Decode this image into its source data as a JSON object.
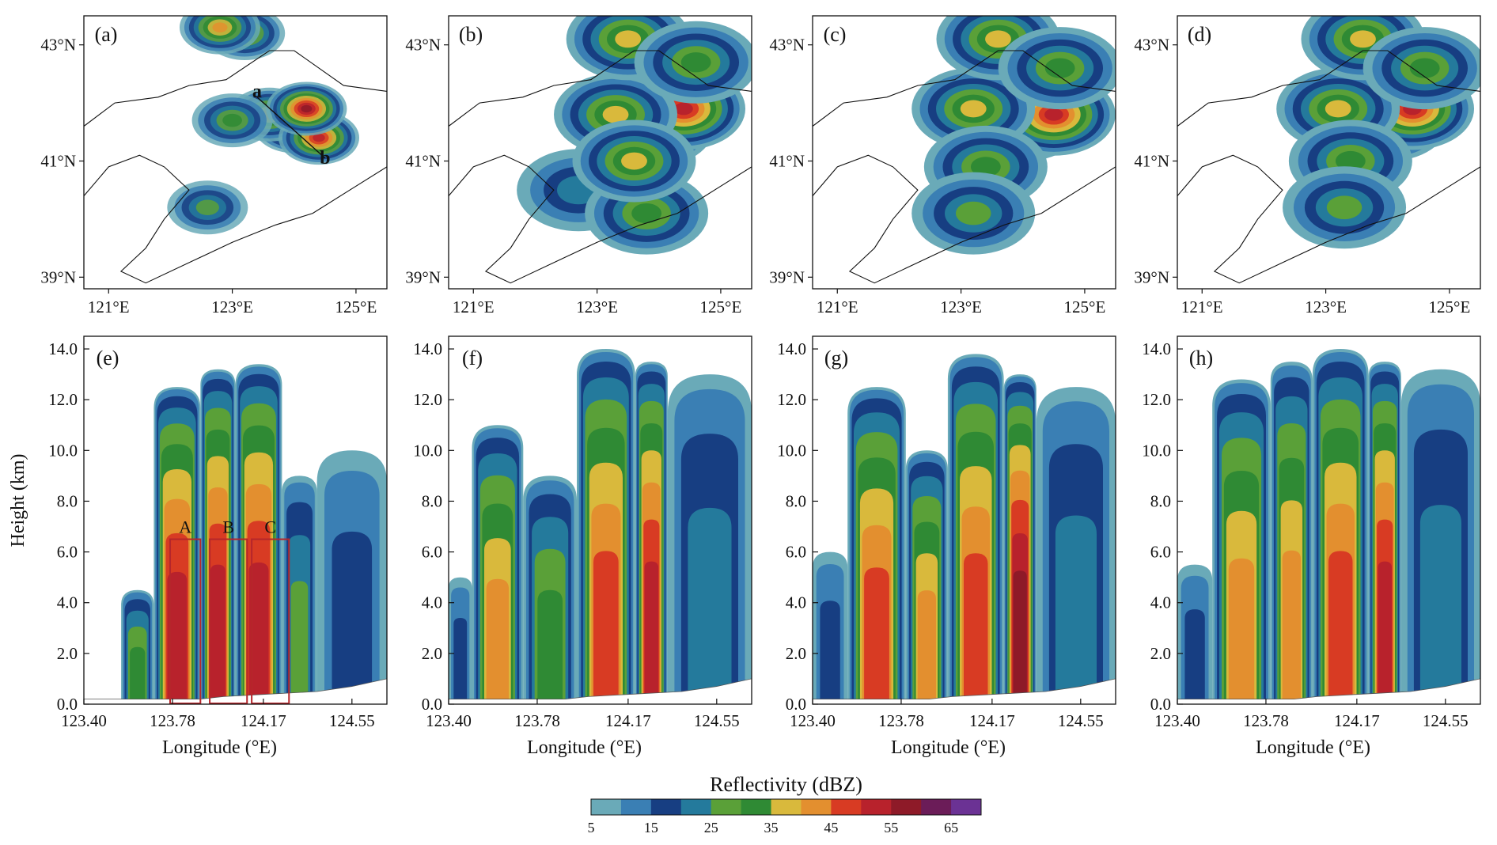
{
  "figure": {
    "colorbar": {
      "title": "Reflectivity (dBZ)",
      "tick_labels": [
        "5",
        "15",
        "25",
        "35",
        "45",
        "55",
        "65"
      ],
      "bins": [
        5,
        10,
        15,
        20,
        25,
        30,
        35,
        40,
        45,
        50,
        55,
        60,
        65,
        70
      ],
      "colors": [
        "#6aaab8",
        "#3a7fb4",
        "#173e82",
        "#247a9c",
        "#5aa038",
        "#2f8a34",
        "#d9b93c",
        "#e38f2f",
        "#d83b23",
        "#b8222c",
        "#8e1a28",
        "#6b1c58",
        "#6b3294"
      ]
    }
  },
  "chart_data": [
    {
      "type": "heatmap",
      "panel": "(a)",
      "x_ticks": [
        "121°E",
        "123°E",
        "125°E"
      ],
      "x_values": [
        121,
        123,
        125
      ],
      "y_ticks": [
        "43°N",
        "41°N",
        "39°N"
      ],
      "y_values": [
        43,
        41,
        39
      ],
      "xlim": [
        120.6,
        125.5
      ],
      "ylim": [
        38.8,
        43.5
      ],
      "annotations": [
        {
          "text": "a",
          "lon": 123.4,
          "lat": 42.1
        },
        {
          "text": "b",
          "lon": 124.5,
          "lat": 40.95
        }
      ],
      "cross_section": {
        "start": [
          123.4,
          42.1
        ],
        "end": [
          124.5,
          41.05
        ]
      },
      "cells": [
        {
          "lon": 124.0,
          "lat": 41.6,
          "dbz": 45
        },
        {
          "lon": 123.6,
          "lat": 41.8,
          "dbz": 40
        },
        {
          "lon": 124.4,
          "lat": 41.4,
          "dbz": 50
        },
        {
          "lon": 123.2,
          "lat": 43.2,
          "dbz": 35
        },
        {
          "lon": 122.8,
          "lat": 43.3,
          "dbz": 40
        },
        {
          "lon": 124.2,
          "lat": 41.9,
          "dbz": 55
        },
        {
          "lon": 123.0,
          "lat": 41.7,
          "dbz": 30
        },
        {
          "lon": 122.6,
          "lat": 40.2,
          "dbz": 25
        }
      ]
    },
    {
      "type": "heatmap",
      "panel": "(b)",
      "x_ticks": [
        "121°E",
        "123°E",
        "125°E"
      ],
      "x_values": [
        121,
        123,
        125
      ],
      "y_ticks": [
        "43°N",
        "41°N",
        "39°N"
      ],
      "y_values": [
        43,
        41,
        39
      ],
      "xlim": [
        120.6,
        125.5
      ],
      "ylim": [
        38.8,
        43.5
      ],
      "cells": [
        {
          "lon": 123.9,
          "lat": 41.6,
          "dbz": 45
        },
        {
          "lon": 124.4,
          "lat": 41.9,
          "dbz": 50
        },
        {
          "lon": 123.3,
          "lat": 41.8,
          "dbz": 35
        },
        {
          "lon": 123.5,
          "lat": 43.1,
          "dbz": 35
        },
        {
          "lon": 122.7,
          "lat": 40.5,
          "dbz": 20
        },
        {
          "lon": 123.8,
          "lat": 40.1,
          "dbz": 30
        },
        {
          "lon": 123.6,
          "lat": 41.0,
          "dbz": 35
        },
        {
          "lon": 124.6,
          "lat": 42.7,
          "dbz": 30
        }
      ]
    },
    {
      "type": "heatmap",
      "panel": "(c)",
      "x_ticks": [
        "121°E",
        "123°E",
        "125°E"
      ],
      "x_values": [
        121,
        123,
        125
      ],
      "y_ticks": [
        "43°N",
        "41°N",
        "39°N"
      ],
      "y_values": [
        43,
        41,
        39
      ],
      "xlim": [
        120.6,
        125.5
      ],
      "ylim": [
        38.8,
        43.5
      ],
      "cells": [
        {
          "lon": 124.0,
          "lat": 41.7,
          "dbz": 45
        },
        {
          "lon": 124.5,
          "lat": 41.8,
          "dbz": 50
        },
        {
          "lon": 123.2,
          "lat": 41.9,
          "dbz": 35
        },
        {
          "lon": 123.6,
          "lat": 43.1,
          "dbz": 35
        },
        {
          "lon": 123.4,
          "lat": 40.9,
          "dbz": 30
        },
        {
          "lon": 123.2,
          "lat": 40.1,
          "dbz": 25
        },
        {
          "lon": 124.6,
          "lat": 42.6,
          "dbz": 30
        }
      ]
    },
    {
      "type": "heatmap",
      "panel": "(d)",
      "x_ticks": [
        "121°E",
        "123°E",
        "125°E"
      ],
      "x_values": [
        121,
        123,
        125
      ],
      "y_ticks": [
        "43°N",
        "41°N",
        "39°N"
      ],
      "y_values": [
        43,
        41,
        39
      ],
      "xlim": [
        120.6,
        125.5
      ],
      "ylim": [
        38.8,
        43.5
      ],
      "cells": [
        {
          "lon": 124.0,
          "lat": 41.7,
          "dbz": 45
        },
        {
          "lon": 124.4,
          "lat": 41.9,
          "dbz": 50
        },
        {
          "lon": 123.2,
          "lat": 41.9,
          "dbz": 35
        },
        {
          "lon": 123.6,
          "lat": 43.1,
          "dbz": 35
        },
        {
          "lon": 123.4,
          "lat": 41.0,
          "dbz": 30
        },
        {
          "lon": 123.3,
          "lat": 40.2,
          "dbz": 25
        },
        {
          "lon": 124.6,
          "lat": 42.6,
          "dbz": 30
        }
      ]
    },
    {
      "type": "heatmap",
      "panel": "(e)",
      "xlabel": "Longitude (°E)",
      "ylabel": "Height (km)",
      "x_ticks": [
        "123.40",
        "123.78",
        "124.17",
        "124.55"
      ],
      "x_values": [
        123.4,
        123.78,
        124.17,
        124.55
      ],
      "y_ticks": [
        "0.0",
        "2.0",
        "4.0",
        "6.0",
        "8.0",
        "10.0",
        "12.0",
        "14.0"
      ],
      "y_values": [
        0,
        2,
        4,
        6,
        8,
        10,
        12,
        14
      ],
      "xlim": [
        123.4,
        124.7
      ],
      "ylim": [
        0,
        14.5
      ],
      "boxes": [
        {
          "label": "A",
          "x0": 123.77,
          "x1": 123.9,
          "y0": 0,
          "y1": 6.5
        },
        {
          "label": "B",
          "x0": 123.94,
          "x1": 124.1,
          "y0": 0,
          "y1": 6.5
        },
        {
          "label": "C",
          "x0": 124.12,
          "x1": 124.28,
          "y0": 0,
          "y1": 6.5
        }
      ],
      "columns": [
        {
          "x0": 123.56,
          "x1": 123.7,
          "top": 4.5,
          "core": 30
        },
        {
          "x0": 123.7,
          "x1": 123.9,
          "top": 12.5,
          "core": 50
        },
        {
          "x0": 123.9,
          "x1": 124.05,
          "top": 13.2,
          "core": 50
        },
        {
          "x0": 124.05,
          "x1": 124.25,
          "top": 13.4,
          "core": 50
        },
        {
          "x0": 124.25,
          "x1": 124.4,
          "top": 9.0,
          "core": 25
        },
        {
          "x0": 124.4,
          "x1": 124.7,
          "top": 10.0,
          "core": 15
        }
      ]
    },
    {
      "type": "heatmap",
      "panel": "(f)",
      "xlabel": "Longitude (°E)",
      "x_ticks": [
        "123.40",
        "123.78",
        "124.17",
        "124.55"
      ],
      "x_values": [
        123.4,
        123.78,
        124.17,
        124.55
      ],
      "y_ticks": [
        "0.0",
        "2.0",
        "4.0",
        "6.0",
        "8.0",
        "10.0",
        "12.0",
        "14.0"
      ],
      "y_values": [
        0,
        2,
        4,
        6,
        8,
        10,
        12,
        14
      ],
      "xlim": [
        123.4,
        124.7
      ],
      "ylim": [
        0,
        14.5
      ],
      "columns": [
        {
          "x0": 123.4,
          "x1": 123.5,
          "top": 5.0,
          "core": 15
        },
        {
          "x0": 123.5,
          "x1": 123.72,
          "top": 11.0,
          "core": 40
        },
        {
          "x0": 123.72,
          "x1": 123.95,
          "top": 9.0,
          "core": 30
        },
        {
          "x0": 123.95,
          "x1": 124.2,
          "top": 14.0,
          "core": 45
        },
        {
          "x0": 124.2,
          "x1": 124.34,
          "top": 13.5,
          "core": 50
        },
        {
          "x0": 124.34,
          "x1": 124.7,
          "top": 13.0,
          "core": 20
        }
      ]
    },
    {
      "type": "heatmap",
      "panel": "(g)",
      "xlabel": "Longitude (°E)",
      "x_ticks": [
        "123.40",
        "123.78",
        "124.17",
        "124.55"
      ],
      "x_values": [
        123.4,
        123.78,
        124.17,
        124.55
      ],
      "y_ticks": [
        "0.0",
        "2.0",
        "4.0",
        "6.0",
        "8.0",
        "10.0",
        "12.0",
        "14.0"
      ],
      "y_values": [
        0,
        2,
        4,
        6,
        8,
        10,
        12,
        14
      ],
      "xlim": [
        123.4,
        124.7
      ],
      "ylim": [
        0,
        14.5
      ],
      "columns": [
        {
          "x0": 123.4,
          "x1": 123.55,
          "top": 6.0,
          "core": 15
        },
        {
          "x0": 123.55,
          "x1": 123.8,
          "top": 12.5,
          "core": 45
        },
        {
          "x0": 123.8,
          "x1": 123.98,
          "top": 10.0,
          "core": 40
        },
        {
          "x0": 123.98,
          "x1": 124.22,
          "top": 13.8,
          "core": 45
        },
        {
          "x0": 124.22,
          "x1": 124.36,
          "top": 13.0,
          "core": 55
        },
        {
          "x0": 124.36,
          "x1": 124.7,
          "top": 12.5,
          "core": 20
        }
      ]
    },
    {
      "type": "heatmap",
      "panel": "(h)",
      "xlabel": "Longitude (°E)",
      "x_ticks": [
        "123.40",
        "123.78",
        "124.17",
        "124.55"
      ],
      "x_values": [
        123.4,
        123.78,
        124.17,
        124.55
      ],
      "y_ticks": [
        "0.0",
        "2.0",
        "4.0",
        "6.0",
        "8.0",
        "10.0",
        "12.0",
        "14.0"
      ],
      "y_values": [
        0,
        2,
        4,
        6,
        8,
        10,
        12,
        14
      ],
      "xlim": [
        123.4,
        124.7
      ],
      "ylim": [
        0,
        14.5
      ],
      "columns": [
        {
          "x0": 123.4,
          "x1": 123.55,
          "top": 5.5,
          "core": 15
        },
        {
          "x0": 123.55,
          "x1": 123.8,
          "top": 12.8,
          "core": 40
        },
        {
          "x0": 123.8,
          "x1": 123.98,
          "top": 13.5,
          "core": 40
        },
        {
          "x0": 123.98,
          "x1": 124.22,
          "top": 14.0,
          "core": 45
        },
        {
          "x0": 124.22,
          "x1": 124.36,
          "top": 13.5,
          "core": 50
        },
        {
          "x0": 124.36,
          "x1": 124.7,
          "top": 13.2,
          "core": 20
        }
      ]
    }
  ]
}
